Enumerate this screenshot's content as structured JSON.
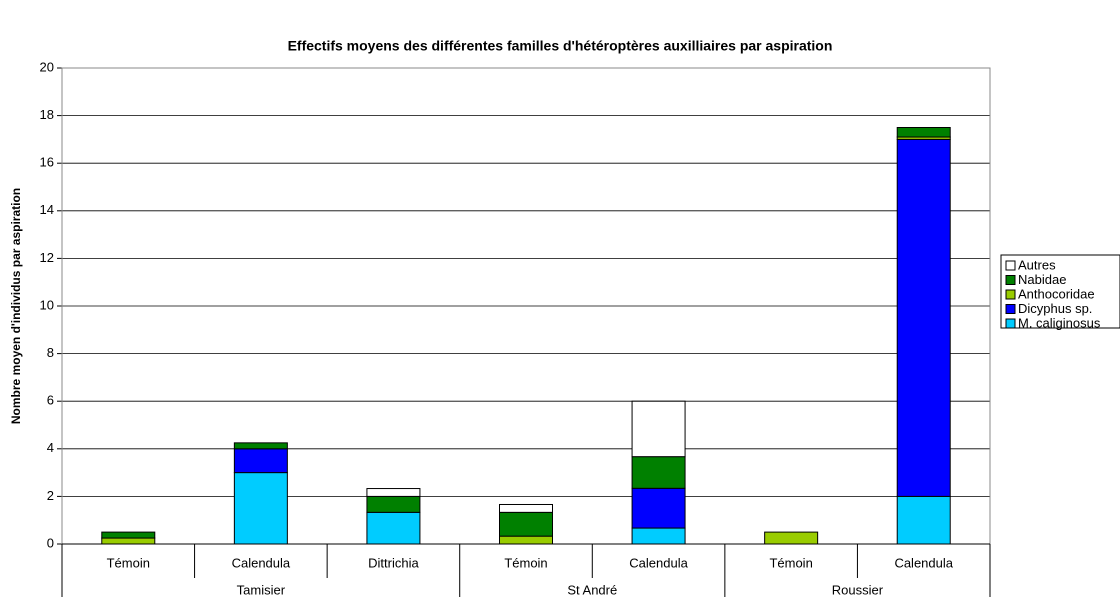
{
  "chart_data": {
    "type": "stacked_bar",
    "title": "Effectifs moyens des différentes familles d'hétéroptères auxilliaires par aspiration",
    "y_label": "Nombre moyen d'individus par aspiration",
    "category_groups": [
      {
        "name": "Tamisier",
        "categories": [
          "Témoin",
          "Calendula",
          "Dittrichia"
        ]
      },
      {
        "name": "St André",
        "categories": [
          "Témoin",
          "Calendula"
        ]
      },
      {
        "name": "Roussier",
        "categories": [
          "Témoin",
          "Calendula"
        ]
      }
    ],
    "series": [
      {
        "name": "M. caliginosus",
        "color": "#00ccff",
        "values": [
          0,
          3,
          1.33,
          0,
          0.67,
          0,
          2
        ]
      },
      {
        "name": "Dicyphus sp.",
        "color": "#0000ff",
        "values": [
          0,
          1,
          0,
          0,
          1.67,
          0,
          15
        ]
      },
      {
        "name": "Anthocoridae",
        "color": "#99cc00",
        "values": [
          0.25,
          0,
          0,
          0.33,
          0,
          0.5,
          0.1
        ]
      },
      {
        "name": "Nabidae",
        "color": "#008000",
        "values": [
          0.25,
          0.25,
          0.67,
          1,
          1.33,
          0,
          0.4
        ]
      },
      {
        "name": "Autres",
        "color": "#ffffff",
        "values": [
          0,
          0,
          0.33,
          0.33,
          2.33,
          0,
          0
        ]
      }
    ],
    "ylim": [
      0,
      20
    ],
    "yticks": [
      0,
      2,
      4,
      6,
      8,
      10,
      12,
      14,
      16,
      18,
      20
    ],
    "grid": true,
    "legend": "right"
  }
}
